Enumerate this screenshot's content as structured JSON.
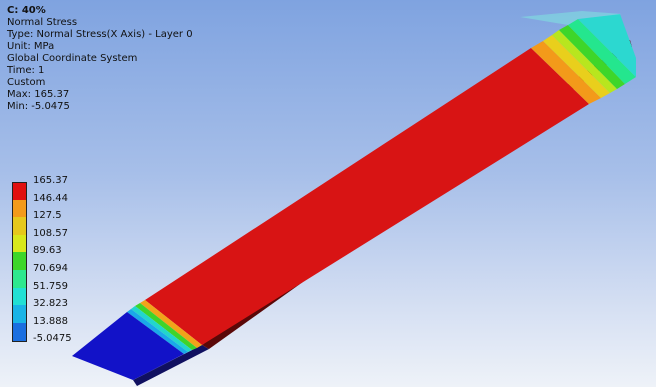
{
  "result": {
    "title": "C: 40%",
    "name": "Normal Stress",
    "type": "Type: Normal Stress(X Axis) - Layer 0",
    "unit": "Unit: MPa",
    "coord_system": "Global Coordinate System",
    "time": "Time: 1",
    "scale_mode": "Custom",
    "max": "Max: 165.37",
    "min": "Min: -5.0475"
  },
  "legend": {
    "labels": [
      "165.37",
      "146.44",
      "127.5",
      "108.57",
      "89.63",
      "70.694",
      "51.759",
      "32.823",
      "13.888",
      "-5.0475"
    ],
    "colors": [
      "#e01010",
      "#f39a1a",
      "#e6c81c",
      "#d8e81c",
      "#3dd62a",
      "#2ee88e",
      "#22e0d4",
      "#1ab4e6",
      "#1b6fe0",
      "#1818c8"
    ]
  },
  "colors": {
    "background_top": "#7fa3e0",
    "background_bottom": "#eef2f8",
    "body": "#d81414",
    "min_region": "#1212c8",
    "max_end": "#2cd8d0"
  }
}
